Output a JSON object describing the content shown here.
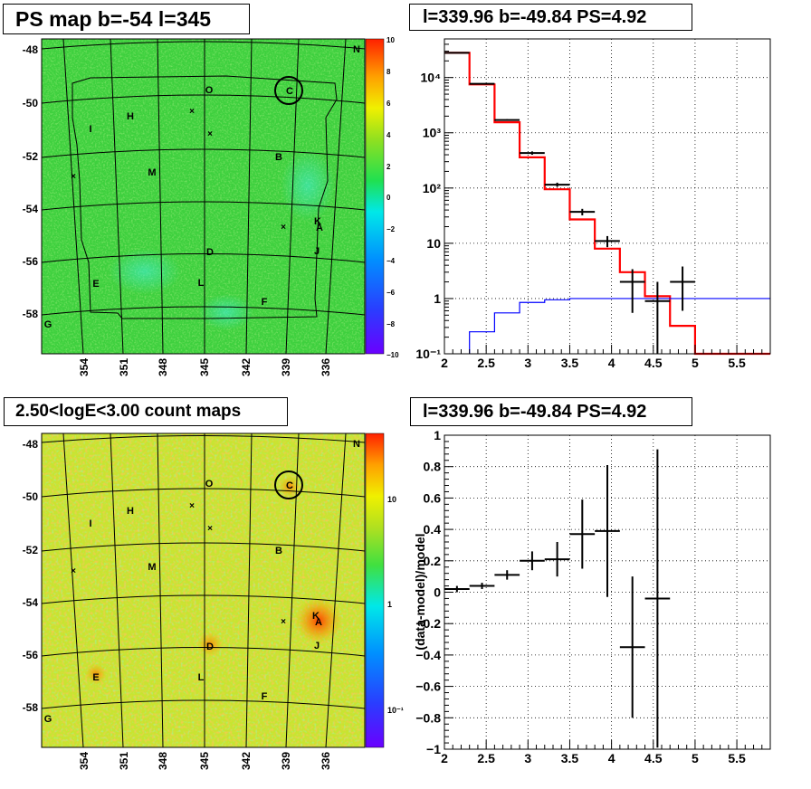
{
  "panels": {
    "ps_map": {
      "title": "PS map b=-54 l=345",
      "lat_ticks": [
        "-48",
        "-50",
        "-52",
        "-54",
        "-56",
        "-58"
      ],
      "lon_ticks": [
        "354",
        "351",
        "348",
        "345",
        "342",
        "339",
        "336"
      ],
      "colorbar_ticks": [
        "10",
        "8",
        "6",
        "4",
        "2",
        "0",
        "−2",
        "−4",
        "−6",
        "−8",
        "−10"
      ],
      "colorbar_range": [
        -10,
        10
      ],
      "source_labels": [
        "N",
        "O",
        "C",
        "H",
        "I",
        "B",
        "M",
        "K",
        "A",
        "D",
        "J",
        "E",
        "L",
        "F",
        "G"
      ]
    },
    "count_map": {
      "title": "2.50<logE<3.00 count maps",
      "lat_ticks": [
        "-48",
        "-50",
        "-52",
        "-54",
        "-56",
        "-58"
      ],
      "lon_ticks": [
        "354",
        "351",
        "348",
        "345",
        "342",
        "339",
        "336"
      ],
      "colorbar_ticks": [
        "10",
        "1",
        "10⁻¹"
      ],
      "colorbar_scale": "log",
      "source_labels": [
        "N",
        "O",
        "C",
        "H",
        "I",
        "B",
        "M",
        "K",
        "A",
        "D",
        "J",
        "E",
        "L",
        "F",
        "G"
      ]
    },
    "spectrum": {
      "title": "l=339.96 b=-49.84 PS=4.92"
    },
    "residual": {
      "title": "l=339.96 b=-49.84 PS=4.92"
    }
  },
  "chart_data": [
    {
      "type": "line",
      "title": "l=339.96 b=-49.84 PS=4.92",
      "xlabel": "",
      "ylabel": "",
      "xlim": [
        2.0,
        5.9
      ],
      "ylim": [
        0.1,
        50000
      ],
      "yscale": "log",
      "grid": true,
      "x_ticks": [
        "2",
        "2.5",
        "3",
        "3.5",
        "4",
        "4.5",
        "5",
        "5.5"
      ],
      "y_ticks": [
        "10⁻¹",
        "1",
        "10",
        "10²",
        "10³",
        "10⁴"
      ],
      "series": [
        {
          "kind": "histogram",
          "color": "#ff0000",
          "bin_edges": [
            2.0,
            2.3,
            2.6,
            2.9,
            3.2,
            3.5,
            3.8,
            4.1,
            4.4,
            4.7,
            5.0,
            5.9
          ],
          "values": [
            28000,
            7500,
            1550,
            360,
            95,
            27,
            8,
            3,
            1.1,
            0.32,
            0.1
          ]
        },
        {
          "kind": "histogram",
          "color": "#0000ff",
          "bin_edges": [
            2.3,
            2.6,
            2.9,
            3.2,
            3.5,
            3.8,
            4.1,
            4.4,
            4.7,
            5.0,
            5.9
          ],
          "values": [
            0.25,
            0.55,
            0.85,
            0.95,
            1.0,
            1.0,
            1.0,
            1.0,
            1.0,
            1.0
          ]
        },
        {
          "kind": "points",
          "color": "#000000",
          "x": [
            2.15,
            2.45,
            2.75,
            3.05,
            3.35,
            3.65,
            3.95,
            4.25,
            4.55,
            4.85
          ],
          "y": [
            28000,
            7700,
            1700,
            430,
            115,
            37,
            11,
            2,
            0.9,
            2
          ],
          "x_err": [
            0.15,
            0.15,
            0.15,
            0.15,
            0.15,
            0.15,
            0.15,
            0.15,
            0.15,
            0.15
          ],
          "y_lo": [
            27600,
            7600,
            1650,
            400,
            105,
            32,
            8.5,
            0.55,
            0.08,
            0.6
          ],
          "y_hi": [
            28400,
            7800,
            1760,
            460,
            125,
            42,
            13.5,
            3.4,
            2,
            3.8
          ]
        }
      ]
    },
    {
      "type": "scatter",
      "title": "l=339.96 b=-49.84 PS=4.92",
      "xlabel": "",
      "ylabel": "(data-model)/model",
      "xlim": [
        2.0,
        5.9
      ],
      "ylim": [
        -1,
        1
      ],
      "grid": true,
      "x_ticks": [
        "2",
        "2.5",
        "3",
        "3.5",
        "4",
        "4.5",
        "5",
        "5.5"
      ],
      "y_ticks": [
        "1",
        "0.8",
        "0.6",
        "0.4",
        "0.2",
        "0",
        "−0.2",
        "−0.4",
        "−0.6",
        "−0.8",
        "−1"
      ],
      "series": [
        {
          "x": [
            2.15,
            2.45,
            2.75,
            3.05,
            3.35,
            3.65,
            3.95,
            4.25,
            4.55
          ],
          "y": [
            0.02,
            0.04,
            0.11,
            0.2,
            0.21,
            0.37,
            0.39,
            -0.35,
            -0.04
          ],
          "x_err": [
            0.15,
            0.15,
            0.15,
            0.15,
            0.15,
            0.15,
            0.15,
            0.15,
            0.15
          ],
          "y_err": [
            0.02,
            0.02,
            0.03,
            0.06,
            0.11,
            0.22,
            0.42,
            0.45,
            0.95
          ]
        }
      ]
    }
  ]
}
